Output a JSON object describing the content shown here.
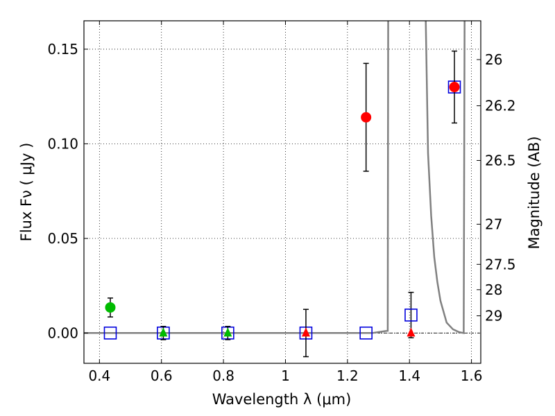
{
  "chart_data": {
    "type": "scatter",
    "title": "",
    "xlabel": "Wavelength  λ (μm)",
    "ylabel": "Flux  Fν  ( μJy )",
    "y2label": "Magnitude (AB)",
    "xlim": [
      0.35,
      1.63
    ],
    "ylim": [
      -0.016,
      0.165
    ],
    "grid": true,
    "x_ticks": [
      {
        "value": 0.4,
        "label": "0.4"
      },
      {
        "value": 0.6,
        "label": "0.6"
      },
      {
        "value": 0.8,
        "label": "0.8"
      },
      {
        "value": 1.0,
        "label": "1"
      },
      {
        "value": 1.2,
        "label": "1.2"
      },
      {
        "value": 1.4,
        "label": "1.4"
      },
      {
        "value": 1.6,
        "label": "1.6"
      }
    ],
    "y_ticks": [
      {
        "value": 0.0,
        "label": "0.00"
      },
      {
        "value": 0.05,
        "label": "0.05"
      },
      {
        "value": 0.1,
        "label": "0.10"
      },
      {
        "value": 0.15,
        "label": "0.15"
      }
    ],
    "mag_ticks": [
      {
        "label": "26",
        "flux": 0.1445
      },
      {
        "label": "26.2",
        "flux": 0.1201
      },
      {
        "label": "26.5",
        "flux": 0.0912
      },
      {
        "label": "27",
        "flux": 0.0575
      },
      {
        "label": "27.5",
        "flux": 0.0363
      },
      {
        "label": "28",
        "flux": 0.0229
      },
      {
        "label": "29",
        "flux": 0.0091
      }
    ],
    "series": [
      {
        "name": "observed-detections",
        "marker": "circle",
        "color": "#ff0000",
        "points": [
          {
            "x": 1.26,
            "y": 0.114,
            "yerr": 0.0285
          },
          {
            "x": 1.545,
            "y": 0.13,
            "yerr": 0.019
          }
        ]
      },
      {
        "name": "optical-detection",
        "marker": "circle",
        "color": "#00bb00",
        "points": [
          {
            "x": 0.435,
            "y": 0.0135,
            "yerr": 0.005
          }
        ]
      },
      {
        "name": "optical-upper-limits",
        "marker": "triangle",
        "color": "#00bb00",
        "points": [
          {
            "x": 0.606,
            "y": 0.0,
            "yerr": 0.0035
          },
          {
            "x": 0.814,
            "y": 0.0,
            "yerr": 0.0035
          }
        ]
      },
      {
        "name": "ir-upper-limits",
        "marker": "triangle",
        "color": "#ff0000",
        "points": [
          {
            "x": 1.066,
            "y": 0.0,
            "yerr": 0.0125
          },
          {
            "x": 1.405,
            "y": 0.0,
            "yerr": 0.0
          }
        ]
      },
      {
        "name": "model-photometry",
        "marker": "square",
        "color": "#0000dd",
        "points": [
          {
            "x": 0.435,
            "y": 0.0
          },
          {
            "x": 0.606,
            "y": 0.0
          },
          {
            "x": 0.814,
            "y": 0.0
          },
          {
            "x": 1.066,
            "y": 0.0
          },
          {
            "x": 1.26,
            "y": 0.0
          },
          {
            "x": 1.405,
            "y": 0.0095,
            "yerr": 0.012
          },
          {
            "x": 1.545,
            "y": 0.13
          }
        ]
      }
    ],
    "model_spectrum": {
      "color": "#808080",
      "points": [
        [
          0.35,
          0.0
        ],
        [
          1.28,
          0.0
        ],
        [
          1.3,
          0.0005
        ],
        [
          1.32,
          0.001
        ],
        [
          1.33,
          0.0012
        ],
        [
          1.3315,
          0.18
        ],
        [
          1.451,
          0.18
        ],
        [
          1.46,
          0.095
        ],
        [
          1.47,
          0.062
        ],
        [
          1.48,
          0.04
        ],
        [
          1.49,
          0.027
        ],
        [
          1.5,
          0.017
        ],
        [
          1.52,
          0.0055
        ],
        [
          1.54,
          0.002
        ],
        [
          1.56,
          0.0005
        ],
        [
          1.575,
          0.0
        ],
        [
          1.578,
          0.18
        ]
      ]
    }
  }
}
